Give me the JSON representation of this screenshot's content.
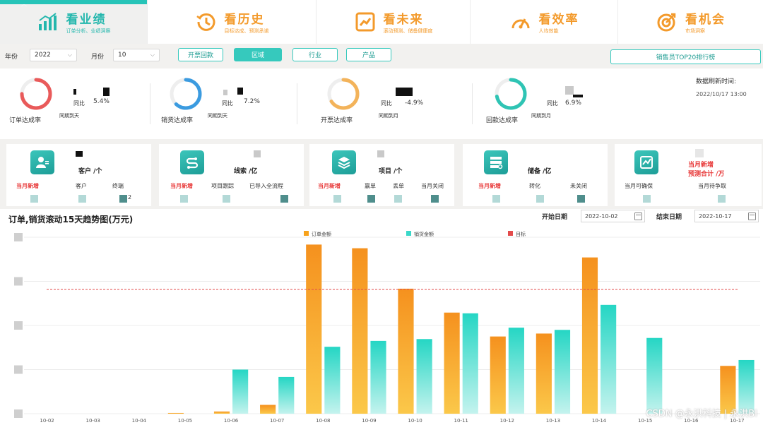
{
  "nav": {
    "tabs": [
      {
        "title": "看业绩",
        "subtitle": "订单分析、业绩洞察",
        "icon": "bar-growth-icon",
        "active": true
      },
      {
        "title": "看历史",
        "subtitle": "目标达成、预测承诺",
        "icon": "history-clock-icon",
        "active": false
      },
      {
        "title": "看未来",
        "subtitle": "滚动预测、储备健康度",
        "icon": "trend-chart-icon",
        "active": false
      },
      {
        "title": "看效率",
        "subtitle": "人均效能",
        "icon": "speed-gauge-icon",
        "active": false
      },
      {
        "title": "看机会",
        "subtitle": "市场洞察",
        "icon": "target-icon",
        "active": false
      }
    ]
  },
  "filters": {
    "year_label": "年份",
    "year_value": "2022",
    "month_label": "月份",
    "month_value": "10",
    "segments": [
      "开票回款",
      "区域",
      "行业",
      "产品"
    ],
    "active_segment": "区域",
    "ranking_button": "销售员TOP20排行榜"
  },
  "kpis": [
    {
      "label": "订单达成率",
      "compare_label": "同比",
      "pct": "5.4%",
      "period": "同期到天",
      "gauge_progress": 0.75,
      "gauge_color": "#e95a5a"
    },
    {
      "label": "销货达成率",
      "compare_label": "同比",
      "pct": "7.2%",
      "period": "同期到天",
      "gauge_progress": 0.62,
      "gauge_color": "#3b9be0"
    },
    {
      "label": "开票达成率",
      "compare_label": "同比",
      "pct": "-4.9%",
      "period": "同期到月",
      "gauge_progress": 0.66,
      "gauge_color": "#f3b35a"
    },
    {
      "label": "回款达成率",
      "compare_label": "同比",
      "pct": "6.9%",
      "period": "同期到月",
      "gauge_progress": 0.72,
      "gauge_color": "#2fc4b4"
    }
  ],
  "refresh": {
    "title": "数据刷新时间:",
    "time": "2022/10/17 13:00"
  },
  "cards": [
    {
      "title": "客户 /个",
      "icon": "customer-icon",
      "subs": [
        {
          "text": "当月新增",
          "red": true
        },
        {
          "text": "客户",
          "red": false
        },
        {
          "text": "终端",
          "red": false
        }
      ],
      "tail": "2"
    },
    {
      "title": "线索 /亿",
      "icon": "lead-link-icon",
      "subs": [
        {
          "text": "当月新增",
          "red": true
        },
        {
          "text": "项目跟踪",
          "red": false
        },
        {
          "text": "已导入全流程",
          "red": false
        }
      ],
      "tail": ""
    },
    {
      "title": "项目 /个",
      "icon": "project-layers-icon",
      "subs": [
        {
          "text": "当月新增",
          "red": true
        },
        {
          "text": "赢单",
          "red": false
        },
        {
          "text": "丢单",
          "red": false
        },
        {
          "text": "当月关闭",
          "red": false
        }
      ],
      "tail": ""
    },
    {
      "title": "储备 /亿",
      "icon": "reserve-server-icon",
      "subs": [
        {
          "text": "当月新增",
          "red": true
        },
        {
          "text": "转化",
          "red": false
        },
        {
          "text": "未关闭",
          "red": false
        }
      ],
      "tail": ""
    },
    {
      "title": "当月新增",
      "title2": "预测合计 /万",
      "icon": "forecast-chart-icon",
      "subs": [
        {
          "text": "当月可确保",
          "red": false
        },
        {
          "text": "当月待争取",
          "red": false
        }
      ],
      "tail": ""
    }
  ],
  "chart_panel": {
    "start_label": "开始日期",
    "start_date": "2022-10-02",
    "end_label": "结束日期",
    "end_date": "2022-10-17"
  },
  "chart_data": {
    "type": "bar",
    "title": "订单,销货滚动15天趋势图(万元)",
    "categories": [
      "10-02",
      "10-03",
      "10-04",
      "10-05",
      "10-06",
      "10-07",
      "10-08",
      "10-09",
      "10-10",
      "10-11",
      "10-12",
      "10-13",
      "10-14",
      "10-15",
      "10-16",
      "10-17"
    ],
    "series": [
      {
        "name": "订单金额",
        "color": "#f7a21b",
        "values": [
          0,
          0,
          0,
          0.2,
          0.6,
          2.4,
          46,
          45,
          34,
          27.5,
          21,
          21.8,
          42.5,
          0,
          0,
          13
        ]
      },
      {
        "name": "销货金额",
        "color": "#3ad8c9",
        "values": [
          0,
          0,
          0,
          0,
          12,
          10,
          18.2,
          19.8,
          20.3,
          27.3,
          23.4,
          22.8,
          29.6,
          20.6,
          0,
          14.6
        ]
      }
    ],
    "target": {
      "name": "目标",
      "color": "#e34b4b",
      "value": 33.8
    },
    "ylim": [
      0,
      48
    ],
    "legend": "top-center",
    "grid": true
  },
  "watermark": "CSDN @永洪科技 | 永洪BI"
}
